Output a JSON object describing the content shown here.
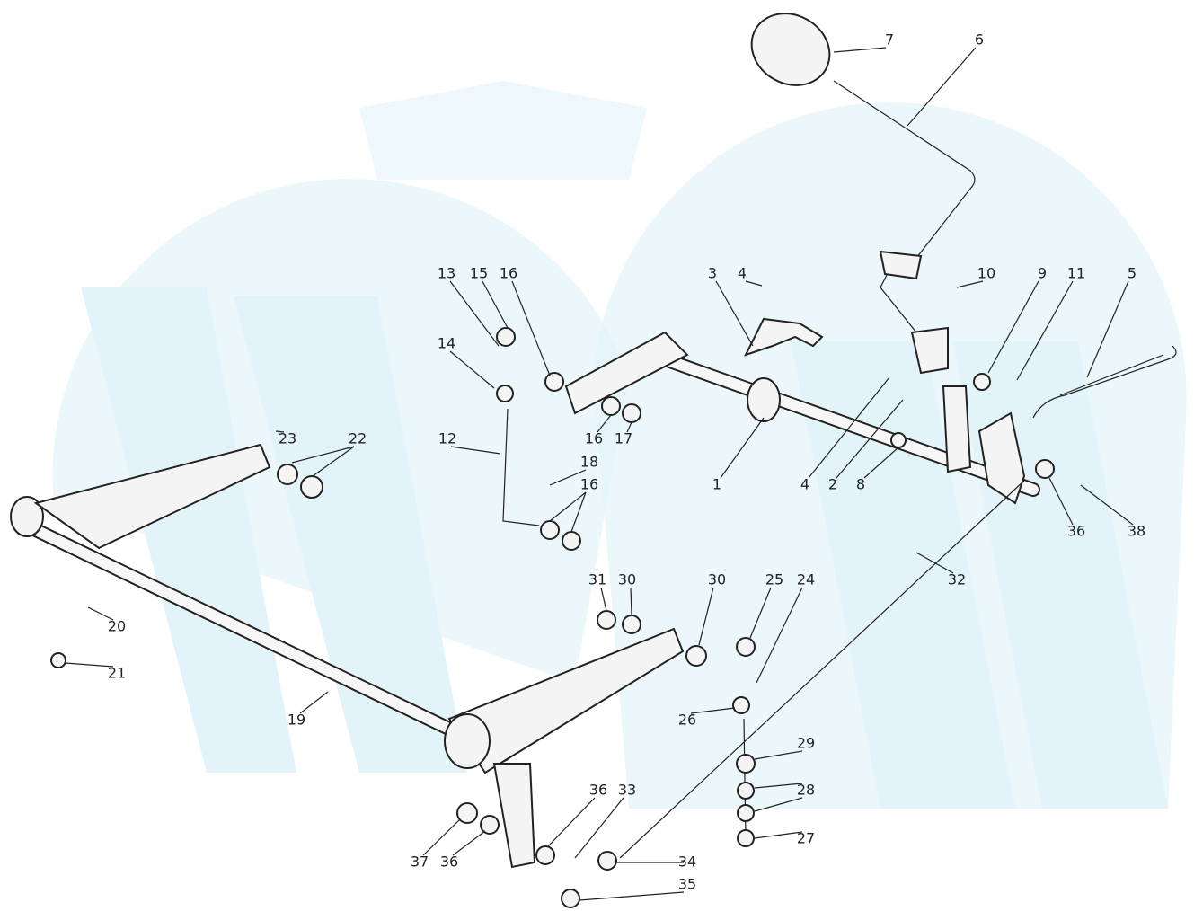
{
  "callouts": [
    "7",
    "6",
    "13",
    "15",
    "16",
    "3",
    "4",
    "10",
    "9",
    "11",
    "5",
    "14",
    "23",
    "22",
    "12",
    "16",
    "17",
    "18",
    "16",
    "1",
    "4",
    "2",
    "8",
    "36",
    "38",
    "32",
    "31",
    "30",
    "30",
    "25",
    "24",
    "20",
    "21",
    "19",
    "26",
    "29",
    "28",
    "27",
    "36",
    "33",
    "37",
    "36",
    "34",
    "35"
  ]
}
